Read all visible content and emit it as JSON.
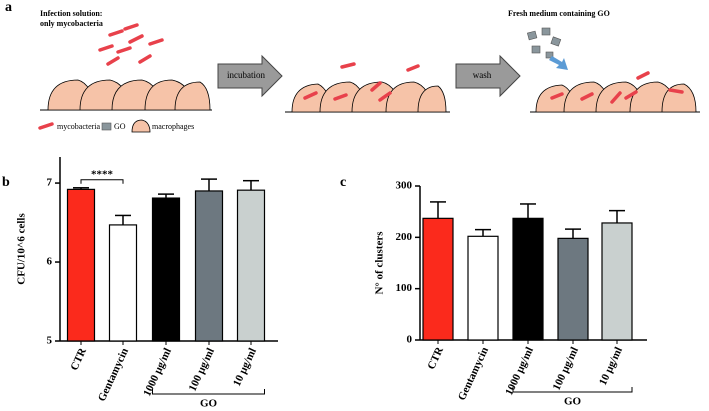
{
  "panel_a": {
    "label": "a",
    "infection_lines": [
      "Infection solution:",
      "only mycobacteria"
    ],
    "step1": "incubation",
    "step2": "wash",
    "fresh_medium": "Fresh medium containing GO",
    "legend": [
      "mycobacteria",
      "GO",
      "macrophages"
    ]
  },
  "chart_data": [
    {
      "type": "bar",
      "label": "b",
      "ylabel": "CFU/10^6 cells",
      "categories": [
        "CTR",
        "Gentamycin",
        "1000 μg/ml",
        "100 μg/ml",
        "10 μg/ml"
      ],
      "values": [
        6.92,
        6.47,
        6.81,
        6.9,
        6.91
      ],
      "errors": [
        0.02,
        0.12,
        0.05,
        0.15,
        0.12
      ],
      "colors": [
        "#fb2a1c",
        "#ffffff",
        "#000000",
        "#6d7880",
        "#c9d0cf"
      ],
      "ylim": [
        5,
        7.33
      ],
      "yticks": [
        5,
        6,
        7
      ],
      "groups": [
        {
          "label": "GO",
          "categories": [
            "1000 μg/ml",
            "100 μg/ml",
            "10 μg/ml"
          ]
        }
      ],
      "annotations": [
        {
          "text": "****",
          "between": [
            "CTR",
            "Gentamycin"
          ]
        }
      ]
    },
    {
      "type": "bar",
      "label": "c",
      "ylabel": "N° of clusters",
      "categories": [
        "CTR",
        "Gentamycin",
        "1000 μg/ml",
        "100 μg/ml",
        "10 μg/ml"
      ],
      "values": [
        237,
        202,
        237,
        198,
        228
      ],
      "errors": [
        32,
        13,
        28,
        18,
        24
      ],
      "colors": [
        "#fb2a1c",
        "#ffffff",
        "#000000",
        "#6d7880",
        "#c9d0cf"
      ],
      "ylim": [
        0,
        300
      ],
      "yticks": [
        0,
        100,
        200,
        300
      ],
      "groups": [
        {
          "label": "GO",
          "categories": [
            "1000 μg/ml",
            "100 μg/ml",
            "10 μg/ml"
          ]
        }
      ]
    }
  ]
}
